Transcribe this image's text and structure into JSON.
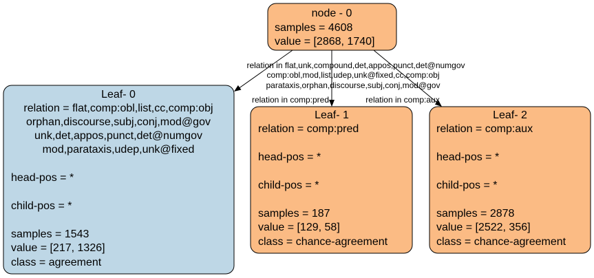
{
  "nodes": [
    {
      "title": "node - 0",
      "lines": [
        "samples = 4608",
        "value = [2868, 1740]"
      ]
    },
    {
      "title": "Leaf- 0",
      "relation": [
        "relation = flat,comp:obl,list,cc,comp:obj",
        "orphan,discourse,subj,conj,mod@gov",
        "unk,det,appos,punct,det@numgov",
        "mod,parataxis,udep,unk@fixed"
      ],
      "lines": [
        "head-pos = *",
        "child-pos = *",
        "samples = 1543",
        "value = [217, 1326]",
        "class = agreement"
      ]
    },
    {
      "title": "Leaf- 1",
      "lines": [
        "relation = comp:pred",
        "head-pos = *",
        "child-pos = *",
        "samples = 187",
        "value = [129, 58]",
        "class = chance-agreement"
      ]
    },
    {
      "title": "Leaf- 2",
      "lines": [
        "relation = comp:aux",
        "head-pos = *",
        "child-pos = *",
        "samples = 2878",
        "value = [2522, 356]",
        "class = chance-agreement"
      ]
    }
  ],
  "edges": [
    {
      "label": [
        "relation in flat,unk,compound,det,appos,punct,det@numgov",
        "comp:obl,mod,list,udep,unk@fixed,cc,comp:obj",
        "parataxis,orphan,discourse,subj,conj,mod@gov"
      ]
    },
    {
      "label": [
        "relation in comp:pred"
      ]
    },
    {
      "label": [
        "relation in comp:aux"
      ]
    }
  ]
}
